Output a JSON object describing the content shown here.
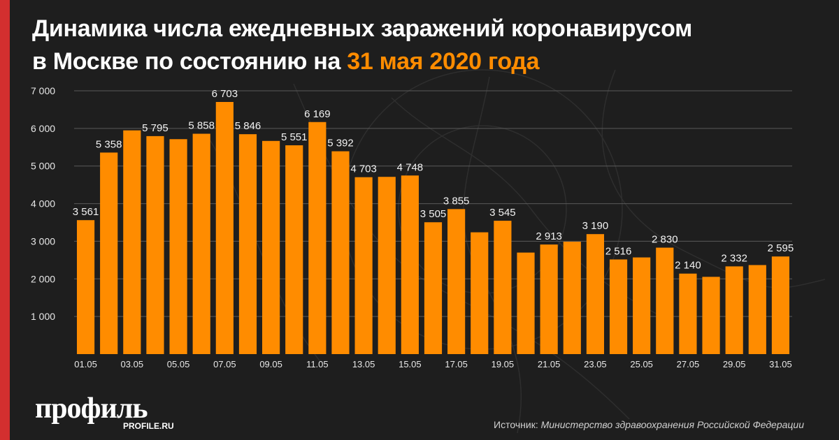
{
  "header": {
    "title_line1": "Динамика числа ежедневных заражений коронавирусом",
    "title_line2_prefix": "в Москве по состоянию на ",
    "title_line2_accent": "31 мая 2020 года"
  },
  "colors": {
    "bar": "#ff8c00",
    "accent": "#ff8c00",
    "side_stripe": "#d32f2f",
    "background": "#1e1e1e"
  },
  "chart_data": {
    "type": "bar",
    "title": "",
    "xlabel": "",
    "ylabel": "",
    "ylim": [
      0,
      7000
    ],
    "grid": true,
    "categories": [
      "01.05",
      "02.05",
      "03.05",
      "04.05",
      "05.05",
      "06.05",
      "07.05",
      "08.05",
      "09.05",
      "10.05",
      "11.05",
      "12.05",
      "13.05",
      "14.05",
      "15.05",
      "16.05",
      "17.05",
      "18.05",
      "19.05",
      "20.05",
      "21.05",
      "22.05",
      "23.05",
      "24.05",
      "25.05",
      "26.05",
      "27.05",
      "28.05",
      "29.05",
      "30.05",
      "31.05"
    ],
    "values": [
      3561,
      5358,
      5948,
      5795,
      5714,
      5858,
      6703,
      5846,
      5667,
      5551,
      6169,
      5392,
      4703,
      4712,
      4748,
      3505,
      3855,
      3238,
      3545,
      2699,
      2913,
      2988,
      3190,
      2516,
      2570,
      2830,
      2140,
      2054,
      2332,
      2367,
      2595
    ],
    "data_labels": [
      "3 561",
      "5 358",
      null,
      "5 795",
      null,
      "5 858",
      "6 703",
      "5 846",
      null,
      "5 551",
      "6 169",
      "5 392",
      "4 703",
      null,
      "4 748",
      "3 505",
      "3 855",
      null,
      "3 545",
      null,
      "2 913",
      null,
      "3 190",
      "2 516",
      null,
      "2 830",
      "2 140",
      null,
      "2 332",
      null,
      "2 595"
    ],
    "x_tick_labels": [
      "01.05",
      null,
      "03.05",
      null,
      "05.05",
      null,
      "07.05",
      null,
      "09.05",
      null,
      "11.05",
      null,
      "13.05",
      null,
      "15.05",
      null,
      "17.05",
      null,
      "19.05",
      null,
      "21.05",
      null,
      "23.05",
      null,
      "25.05",
      null,
      "27.05",
      null,
      "29.05",
      null,
      "31.05"
    ],
    "y_ticks": [
      1000,
      2000,
      3000,
      4000,
      5000,
      6000,
      7000
    ],
    "y_tick_labels": [
      "1 000",
      "2 000",
      "3 000",
      "4 000",
      "5 000",
      "6 000",
      "7 000"
    ]
  },
  "footer": {
    "logo_text": "профиль",
    "logo_sub": "PROFILE.RU",
    "source_label": "Источник: ",
    "source_text": "Министерство здравоохранения Российской Федерации"
  }
}
